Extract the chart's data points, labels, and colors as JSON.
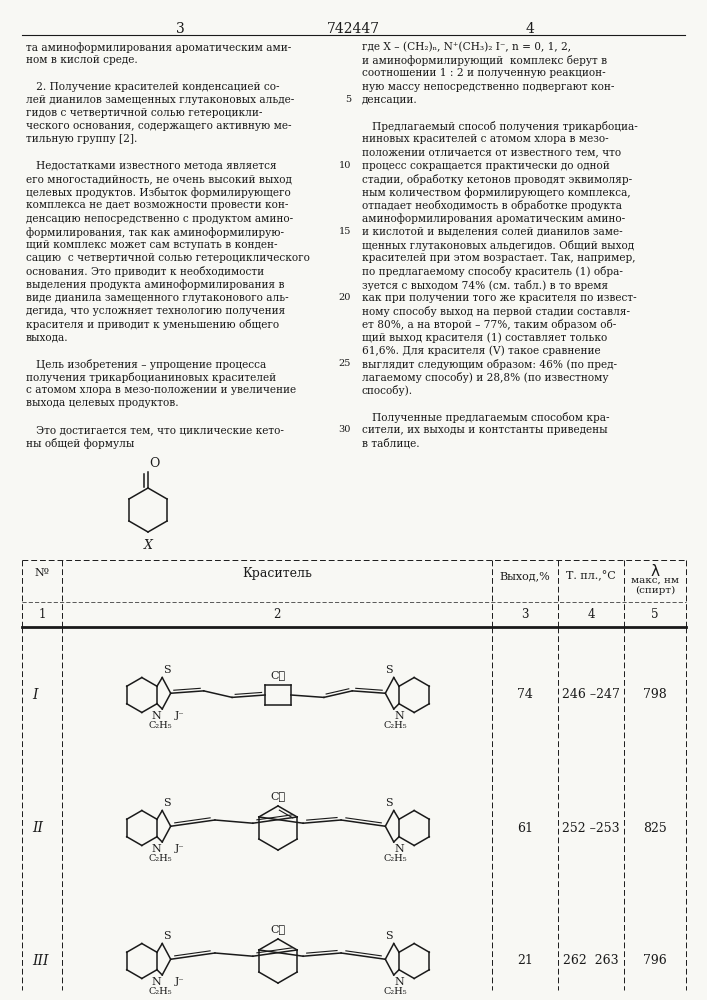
{
  "page_number_left": "3",
  "patent_number": "742447",
  "page_number_right": "4",
  "background_color": "#f8f8f4",
  "text_color": "#1a1a1a",
  "left_column_text": [
    "та аминоформилирования ароматическим ами-",
    "ном в кислой среде.",
    "",
    "   2. Получение красителей конденсацией со-",
    "лей дианилов замещенных глутаконовых альде-",
    "гидов с четвертичной солью гетероцикли-",
    "ческого основания, содержащего активную ме-",
    "тильную группу [2].",
    "",
    "   Недостатками известного метода является",
    "его многостадийность, не очень высокий выход",
    "целевых продуктов. Избыток формилирующего",
    "комплекса не дает возможности провести кон-",
    "денсацию непосредственно с продуктом амино-",
    "формилирования, так как аминоформилирую-",
    "щий комплекс может сам вступать в конден-",
    "сацию  с четвертичной солью гетероциклического",
    "основания. Это приводит к необходимости",
    "выделения продукта аминоформилирования в",
    "виде дианила замещенного глутаконового аль-",
    "дегида, что усложняет технологию получения",
    "красителя и приводит к уменьшению общего",
    "выхода.",
    "",
    "   Цель изобретения – упрощение процесса",
    "получения трикарбоцианиновых красителей",
    "с атомом хлора в мезо-положении и увеличение",
    "выхода целевых продуктов.",
    "",
    "   Это достигается тем, что циклические кето-",
    "ны общей формулы"
  ],
  "right_column_text": [
    "где X – (CH₂)ₙ, N⁺(CH₃)₂ I⁻, n = 0, 1, 2,",
    "и аминоформилирующий  комплекс берут в",
    "соотношении 1 : 2 и полученную реакцион-",
    "ную массу непосредственно подвергают кон-",
    "денсации.",
    "",
    "   Предлагаемый способ получения трикарбоциа-",
    "ниновых красителей с атомом хлора в мезо-",
    "положении отличается от известного тем, что",
    "процесс сокращается практически до одной",
    "стадии, обработку кетонов проводят эквимоляр-",
    "ным количеством формилирующего комплекса,",
    "отпадает необходимость в обработке продукта",
    "аминоформилирования ароматическим амино-",
    "и кислотой и выделения солей дианилов заме-",
    "щенных глутаконовых альдегидов. Общий выход",
    "красителей при этом возрастает. Так, например,",
    "по предлагаемому способу краситель (1) обра-",
    "зуется с выходом 74% (см. табл.) в то время",
    "как при получении того же красителя по извест-",
    "ному способу выход на первой стадии составля-",
    "ет 80%, а на второй – 77%, таким образом об-",
    "щий выход красителя (1) составляет только",
    "61,6%. Для красителя (V) такое сравнение",
    "выглядит следующим образом: 46% (по пред-",
    "лагаемому способу) и 28,8% (по известному",
    "способу).",
    "",
    "   Полученные предлагаемым способом кра-",
    "сители, их выходы и контстанты приведены",
    "в таблице."
  ],
  "table_rows": [
    {
      "num": "I",
      "yield": "74",
      "mp": "246 –247",
      "lambda": "798"
    },
    {
      "num": "II",
      "yield": "61",
      "mp": "252 –253",
      "lambda": "825"
    },
    {
      "num": "III",
      "yield": "21",
      "mp": "262  263",
      "lambda": "796"
    }
  ]
}
